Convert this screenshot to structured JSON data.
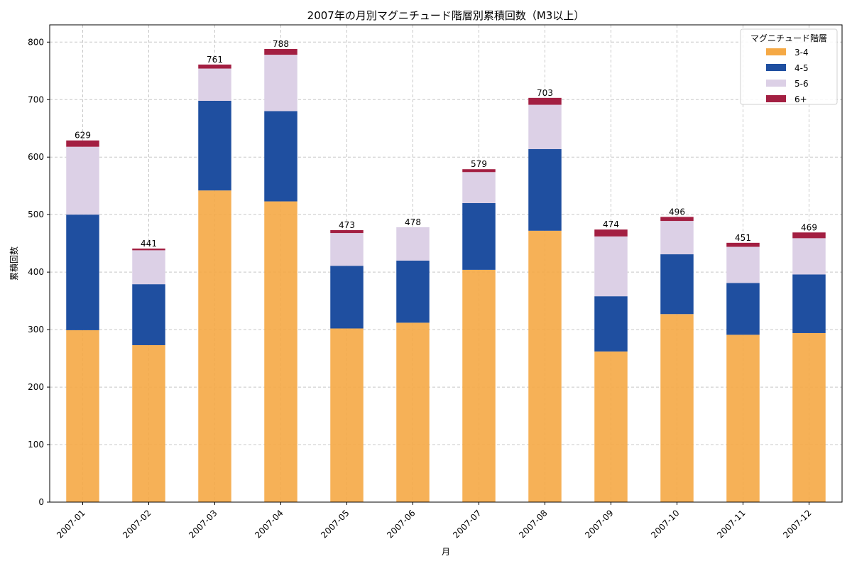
{
  "chart_data": {
    "type": "bar",
    "stacked": true,
    "title": "2007年の月別マグニチュード階層別累積回数（M3以上）",
    "xlabel": "月",
    "ylabel": "累積回数",
    "ylim": [
      0,
      830
    ],
    "yticks": [
      0,
      100,
      200,
      300,
      400,
      500,
      600,
      700,
      800
    ],
    "grid": true,
    "legend": {
      "title": "マグニチュード階層",
      "placement": "top-right"
    },
    "categories": [
      "2007-01",
      "2007-02",
      "2007-03",
      "2007-04",
      "2007-05",
      "2007-06",
      "2007-07",
      "2007-08",
      "2007-09",
      "2007-10",
      "2007-11",
      "2007-12"
    ],
    "series": [
      {
        "name": "3-4",
        "color": "#f5a945",
        "values": [
          299,
          273,
          542,
          523,
          302,
          312,
          404,
          472,
          262,
          327,
          291,
          294
        ]
      },
      {
        "name": "4-5",
        "color": "#1f4fa0",
        "values": [
          201,
          106,
          156,
          157,
          109,
          108,
          116,
          142,
          96,
          104,
          90,
          102
        ]
      },
      {
        "name": "5-6",
        "color": "#dcd0e6",
        "values": [
          118,
          59,
          56,
          98,
          57,
          58,
          54,
          77,
          104,
          58,
          63,
          63
        ]
      },
      {
        "name": "6+",
        "color": "#a31f42",
        "values": [
          11,
          3,
          7,
          10,
          5,
          0,
          5,
          12,
          12,
          7,
          7,
          10
        ]
      }
    ],
    "totals": [
      629,
      441,
      761,
      788,
      473,
      478,
      579,
      703,
      474,
      496,
      451,
      469
    ]
  }
}
